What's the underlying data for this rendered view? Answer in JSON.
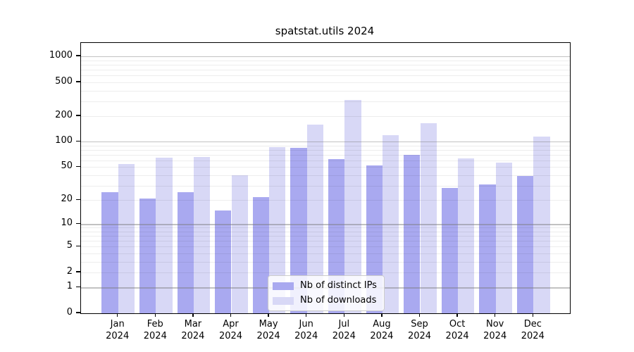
{
  "figure": {
    "title": "spatstat.utils 2024"
  },
  "chart_data": {
    "type": "bar",
    "title": "spatstat.utils 2024",
    "categories": [
      "Jan 2024",
      "Feb 2024",
      "Mar 2024",
      "Apr 2024",
      "May 2024",
      "Jun 2024",
      "Jul 2024",
      "Aug 2024",
      "Sep 2024",
      "Oct 2024",
      "Nov 2024",
      "Dec 2024"
    ],
    "month_labels": [
      "Jan",
      "Feb",
      "Mar",
      "Apr",
      "May",
      "Jun",
      "Jul",
      "Aug",
      "Sep",
      "Oct",
      "Nov",
      "Dec"
    ],
    "year_label": "2024",
    "series": [
      {
        "name": "Nb of distinct IPs",
        "color": "#a9a9f0",
        "values": [
          25,
          21,
          25,
          15,
          22,
          84,
          62,
          52,
          70,
          28,
          31,
          39
        ]
      },
      {
        "name": "Nb of downloads",
        "color": "#d8d8f6",
        "values": [
          55,
          65,
          66,
          40,
          86,
          158,
          310,
          120,
          164,
          64,
          57,
          115
        ]
      }
    ],
    "yscale": "log1p",
    "ylim": [
      0,
      1450
    ],
    "y_tick_values": [
      0,
      1,
      2,
      5,
      10,
      20,
      50,
      100,
      200,
      500,
      1000
    ],
    "y_tick_labels": [
      "0",
      "1",
      "2",
      "5",
      "10",
      "20",
      "50",
      "100",
      "200",
      "500",
      "1000"
    ],
    "grid": {
      "major_values": [
        1,
        10,
        100,
        1000
      ],
      "minor_values": [
        2,
        3,
        4,
        5,
        6,
        7,
        8,
        9,
        20,
        30,
        40,
        50,
        60,
        70,
        80,
        90,
        200,
        300,
        400,
        500,
        600,
        700,
        800,
        900
      ]
    },
    "legend": {
      "position": "bottom-center",
      "entries": [
        "Nb of distinct IPs",
        "Nb of downloads"
      ]
    },
    "axis_color": "#000000",
    "background_color": "#ffffff"
  }
}
